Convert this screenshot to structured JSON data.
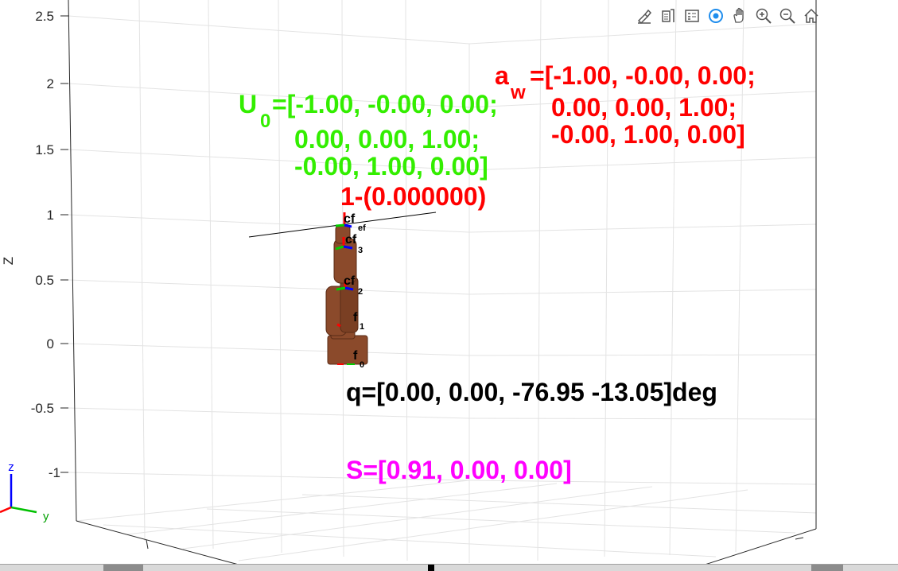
{
  "axes": {
    "zlabel": "Z",
    "zticks": [
      "2.5",
      "2",
      "1.5",
      "1",
      "0.5",
      "0",
      "-0.5",
      "-1"
    ],
    "triad": {
      "z": "z",
      "y": "y"
    }
  },
  "annotations": {
    "a_w_sym": "a",
    "a_w_sub": "w",
    "a_w_line1": "=[-1.00, -0.00, 0.00;",
    "a_w_line2": "0.00, 0.00, 1.00;",
    "a_w_line3": "-0.00, 1.00, 0.00]",
    "u0_sym": "U",
    "u0_sub": "0",
    "u0_line1": "=[-1.00, -0.00, 0.00;",
    "u0_line2": "0.00, 0.00, 1.00;",
    "u0_line3": "-0.00, 1.00, 0.00]",
    "cond": "1-(0.000000)",
    "q": "q=[0.00, 0.00, -76.95 -13.05]deg",
    "s": "S=[0.91, 0.00, 0.00]"
  },
  "frames": [
    {
      "sym": "cf",
      "sub": "ef"
    },
    {
      "sym": "cf",
      "sub": "3"
    },
    {
      "sym": "cf",
      "sub": "2"
    },
    {
      "sym": "f",
      "sub": "1"
    },
    {
      "sym": "f",
      "sub": "0"
    }
  ],
  "colors": {
    "red": "#ff0000",
    "green": "#33ee00",
    "magenta": "#ff00ff",
    "black": "#000000",
    "robot": "#8b4a2b",
    "grid": "#e3e3e3",
    "axis": "#262626"
  },
  "toolbar": [
    "brush-icon",
    "data-tips-icon",
    "legend-icon",
    "rotate-icon",
    "pan-icon",
    "zoom-in-icon",
    "zoom-out-icon",
    "home-icon"
  ]
}
